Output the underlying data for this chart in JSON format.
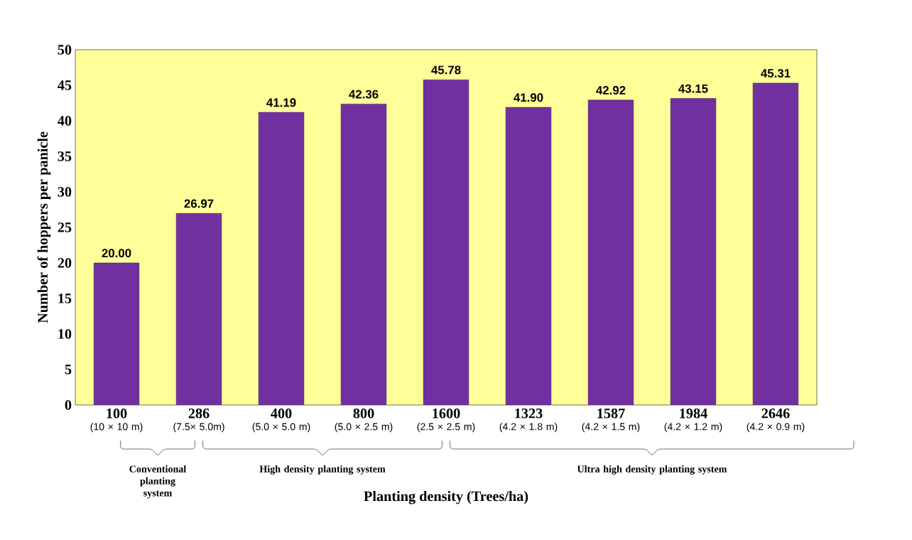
{
  "chart_data": {
    "type": "bar",
    "xlabel": "Planting density (Trees/ha)",
    "ylabel": "Number of hoppers per panicle",
    "categories": [
      "**100** (10 × 10 m)",
      "**286** (7.5× 5.0m)",
      "**400** (5.0 × 5.0 m)",
      "**800** (5.0 × 2.5 m)",
      "**1600** (2.5 × 2.5 m)",
      "**1323** (4.2 × 1.8 m)",
      "**1587** (4.2 × 1.5 m)",
      "**1984** (4.2 × 1.2 m)",
      "**2646** (4.2 × 0.9 m)"
    ],
    "values": [
      20.0,
      26.97,
      41.19,
      42.36,
      45.78,
      41.9,
      42.92,
      43.15,
      45.31
    ],
    "color": "#7030a0",
    "ylim": [
      0,
      50
    ],
    "yticks": [
      0,
      5,
      10,
      15,
      20,
      25,
      30,
      35,
      40,
      45,
      50
    ],
    "value_labels": [
      "20.00",
      "26.97",
      "41.19",
      "42.36",
      "45.78",
      "41.90",
      "42.92",
      "43.15",
      "45.31"
    ],
    "annotations": [
      "Conventional planting system",
      "High density planting system",
      "Ultra high density planting system"
    ]
  }
}
